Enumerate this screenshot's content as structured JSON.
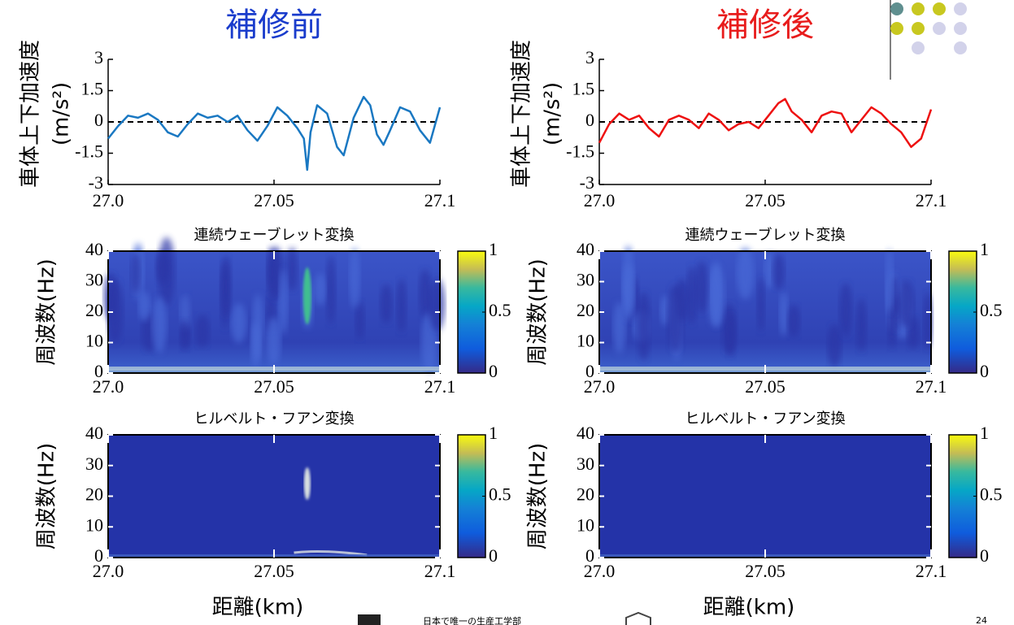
{
  "chart_data": [
    {
      "type": "line",
      "title": "補修前",
      "title_color": "#1a3ccc",
      "ylabel": [
        "車体上下加速度",
        "(m/s²)"
      ],
      "x": [
        27.0,
        27.003,
        27.006,
        27.009,
        27.012,
        27.015,
        27.018,
        27.021,
        27.024,
        27.027,
        27.03,
        27.033,
        27.036,
        27.039,
        27.042,
        27.045,
        27.048,
        27.051,
        27.054,
        27.057,
        27.059,
        27.06,
        27.061,
        27.063,
        27.066,
        27.069,
        27.071,
        27.074,
        27.077,
        27.079,
        27.081,
        27.083,
        27.085,
        27.088,
        27.091,
        27.094,
        27.097,
        27.1
      ],
      "series": [
        {
          "color": "#1a78c2",
          "values": [
            -0.8,
            -0.2,
            0.3,
            0.2,
            0.4,
            0.1,
            -0.5,
            -0.7,
            -0.1,
            0.4,
            0.2,
            0.3,
            0.0,
            0.3,
            -0.4,
            -0.9,
            -0.2,
            0.7,
            0.3,
            -0.3,
            -0.8,
            -2.3,
            -0.5,
            0.8,
            0.4,
            -1.2,
            -1.6,
            0.2,
            1.2,
            0.8,
            -0.6,
            -1.1,
            -0.4,
            0.7,
            0.5,
            -0.4,
            -1.0,
            0.7
          ]
        }
      ],
      "reference_line": 0,
      "xlim": [
        27.0,
        27.1
      ],
      "ylim": [
        -3,
        3
      ],
      "xticks": [
        {
          "value": 27.0,
          "label": "27.0"
        },
        27.05,
        27.1
      ],
      "yticks": [
        3,
        1.5,
        0,
        -1.5,
        -3
      ]
    },
    {
      "type": "line",
      "title": "補修後",
      "title_color": "#e81c1c",
      "ylabel": [
        "車体上下加速度",
        "(m/s²)"
      ],
      "x": [
        27.0,
        27.003,
        27.006,
        27.009,
        27.012,
        27.015,
        27.018,
        27.021,
        27.024,
        27.027,
        27.03,
        27.033,
        27.036,
        27.039,
        27.042,
        27.045,
        27.048,
        27.051,
        27.054,
        27.056,
        27.058,
        27.061,
        27.064,
        27.067,
        27.07,
        27.073,
        27.076,
        27.079,
        27.082,
        27.085,
        27.088,
        27.091,
        27.094,
        27.097,
        27.1
      ],
      "series": [
        {
          "color": "#ee1111",
          "values": [
            -1.0,
            -0.1,
            0.4,
            0.1,
            0.3,
            -0.3,
            -0.7,
            0.1,
            0.3,
            0.1,
            -0.3,
            0.4,
            0.1,
            -0.4,
            -0.1,
            0.0,
            -0.3,
            0.3,
            0.9,
            1.1,
            0.5,
            0.1,
            -0.5,
            0.3,
            0.5,
            0.4,
            -0.5,
            0.1,
            0.7,
            0.4,
            -0.1,
            -0.5,
            -1.2,
            -0.8,
            0.6
          ]
        }
      ],
      "reference_line": 0,
      "xlim": [
        27.0,
        27.1
      ],
      "ylim": [
        -3,
        3
      ],
      "xticks": [
        {
          "value": 27.0,
          "label": "27.0"
        },
        27.05,
        27.1
      ],
      "yticks": [
        3,
        1.5,
        0,
        -1.5,
        -3
      ]
    },
    {
      "type": "heatmap",
      "title": "連続ウェーブレット変換",
      "ylabel": "周波数(Hz)",
      "xlim": [
        27.0,
        27.1
      ],
      "ylim": [
        0,
        40
      ],
      "xticks": [
        {
          "value": 27.0,
          "label": "27.0"
        },
        27.05,
        27.1
      ],
      "yticks": [
        0,
        10,
        20,
        30,
        40
      ],
      "colorbar": {
        "lim": [
          0,
          1
        ],
        "ticks": [
          0,
          0.5,
          1
        ]
      }
    },
    {
      "type": "heatmap",
      "title": "連続ウェーブレット変換",
      "ylabel": "周波数(Hz)",
      "xlim": [
        27.0,
        27.1
      ],
      "ylim": [
        0,
        40
      ],
      "xticks": [
        {
          "value": 27.0,
          "label": "27.0"
        },
        27.05,
        27.1
      ],
      "yticks": [
        0,
        10,
        20,
        30,
        40
      ],
      "colorbar": {
        "lim": [
          0,
          1
        ],
        "ticks": [
          0,
          0.5,
          1
        ]
      }
    },
    {
      "type": "heatmap",
      "title": "ヒルベルト・フアン変換",
      "ylabel": "周波数(Hz)",
      "xlabel": "距離(km)",
      "xlim": [
        27.0,
        27.1
      ],
      "ylim": [
        0,
        40
      ],
      "xticks": [
        {
          "value": 27.0,
          "label": "27.0"
        },
        27.05,
        27.1
      ],
      "yticks": [
        0,
        10,
        20,
        30,
        40
      ],
      "colorbar": {
        "lim": [
          0,
          1
        ],
        "ticks": [
          0,
          0.5,
          1
        ]
      }
    },
    {
      "type": "heatmap",
      "title": "ヒルベルト・フアン変換",
      "ylabel": "周波数(Hz)",
      "xlabel": "距離(km)",
      "xlim": [
        27.0,
        27.1
      ],
      "ylim": [
        0,
        40
      ],
      "xticks": [
        {
          "value": 27.0,
          "label": "27.0"
        },
        27.05,
        27.1
      ],
      "yticks": [
        0,
        10,
        20,
        30,
        40
      ],
      "colorbar": {
        "lim": [
          0,
          1
        ],
        "ticks": [
          0,
          0.5,
          1
        ]
      }
    }
  ],
  "footer": {
    "text": "日本で唯一の生産工学部",
    "page": "24"
  }
}
